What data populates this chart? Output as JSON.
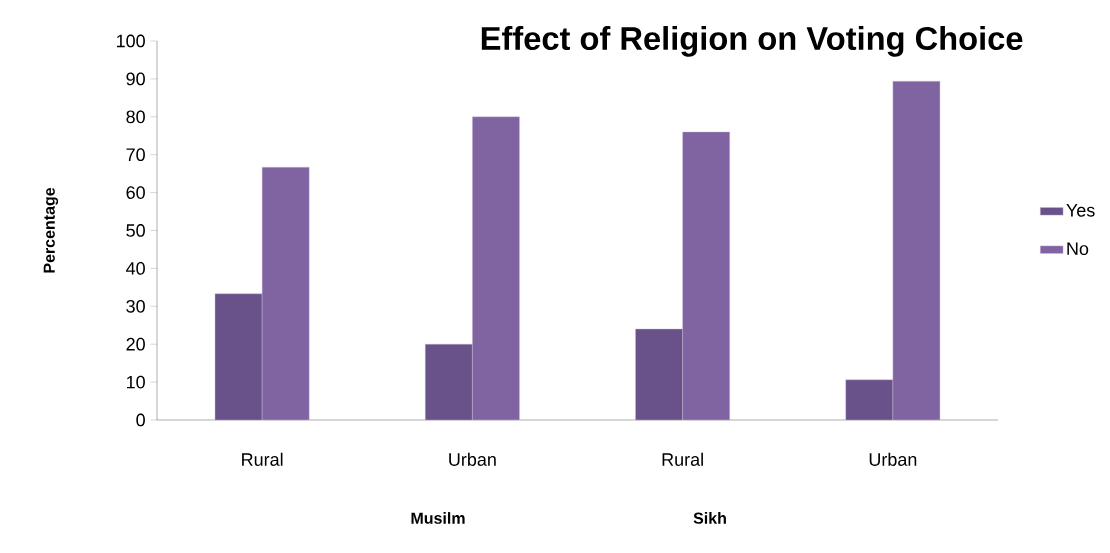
{
  "chart_data": {
    "type": "bar",
    "title": "Effect of Religion on Voting Choice",
    "ylabel": "Percentage",
    "categories": [
      "Rural",
      "Urban",
      "Rural",
      "Urban"
    ],
    "series": [
      {
        "name": "Yes",
        "color": "#69518a",
        "values": [
          33.3,
          20,
          24,
          10.6
        ]
      },
      {
        "name": "No",
        "color": "#8064a2",
        "values": [
          66.7,
          80,
          76,
          89.4
        ]
      }
    ],
    "ylim": [
      0,
      100
    ],
    "yticks": [
      0,
      10,
      20,
      30,
      40,
      50,
      60,
      70,
      80,
      90,
      100
    ],
    "grid": false,
    "legend": "right",
    "annotations": [
      "Musilm",
      "Sikh"
    ]
  }
}
